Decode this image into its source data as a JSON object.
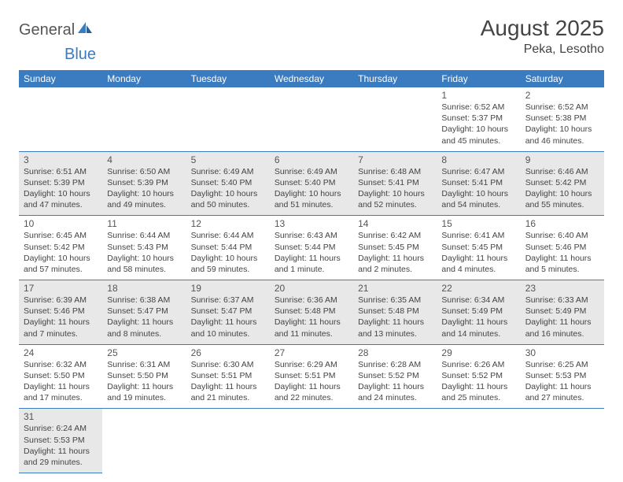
{
  "header": {
    "logo_text_1": "General",
    "logo_text_2": "Blue",
    "month_title": "August 2025",
    "location": "Peka, Lesotho"
  },
  "colors": {
    "header_bg": "#3b7bbf",
    "header_text": "#ffffff",
    "row_border": "#3b7bbf",
    "shaded_row": "#e8e8e8",
    "body_text": "#444444",
    "logo_gray": "#555555",
    "logo_blue": "#3b7bbf",
    "page_bg": "#ffffff"
  },
  "calendar": {
    "day_headers": [
      "Sunday",
      "Monday",
      "Tuesday",
      "Wednesday",
      "Thursday",
      "Friday",
      "Saturday"
    ],
    "weeks": [
      {
        "shaded": false,
        "cells": [
          null,
          null,
          null,
          null,
          null,
          {
            "num": "1",
            "sunrise": "Sunrise: 6:52 AM",
            "sunset": "Sunset: 5:37 PM",
            "day1": "Daylight: 10 hours",
            "day2": "and 45 minutes."
          },
          {
            "num": "2",
            "sunrise": "Sunrise: 6:52 AM",
            "sunset": "Sunset: 5:38 PM",
            "day1": "Daylight: 10 hours",
            "day2": "and 46 minutes."
          }
        ]
      },
      {
        "shaded": true,
        "cells": [
          {
            "num": "3",
            "sunrise": "Sunrise: 6:51 AM",
            "sunset": "Sunset: 5:39 PM",
            "day1": "Daylight: 10 hours",
            "day2": "and 47 minutes."
          },
          {
            "num": "4",
            "sunrise": "Sunrise: 6:50 AM",
            "sunset": "Sunset: 5:39 PM",
            "day1": "Daylight: 10 hours",
            "day2": "and 49 minutes."
          },
          {
            "num": "5",
            "sunrise": "Sunrise: 6:49 AM",
            "sunset": "Sunset: 5:40 PM",
            "day1": "Daylight: 10 hours",
            "day2": "and 50 minutes."
          },
          {
            "num": "6",
            "sunrise": "Sunrise: 6:49 AM",
            "sunset": "Sunset: 5:40 PM",
            "day1": "Daylight: 10 hours",
            "day2": "and 51 minutes."
          },
          {
            "num": "7",
            "sunrise": "Sunrise: 6:48 AM",
            "sunset": "Sunset: 5:41 PM",
            "day1": "Daylight: 10 hours",
            "day2": "and 52 minutes."
          },
          {
            "num": "8",
            "sunrise": "Sunrise: 6:47 AM",
            "sunset": "Sunset: 5:41 PM",
            "day1": "Daylight: 10 hours",
            "day2": "and 54 minutes."
          },
          {
            "num": "9",
            "sunrise": "Sunrise: 6:46 AM",
            "sunset": "Sunset: 5:42 PM",
            "day1": "Daylight: 10 hours",
            "day2": "and 55 minutes."
          }
        ]
      },
      {
        "shaded": false,
        "cells": [
          {
            "num": "10",
            "sunrise": "Sunrise: 6:45 AM",
            "sunset": "Sunset: 5:42 PM",
            "day1": "Daylight: 10 hours",
            "day2": "and 57 minutes."
          },
          {
            "num": "11",
            "sunrise": "Sunrise: 6:44 AM",
            "sunset": "Sunset: 5:43 PM",
            "day1": "Daylight: 10 hours",
            "day2": "and 58 minutes."
          },
          {
            "num": "12",
            "sunrise": "Sunrise: 6:44 AM",
            "sunset": "Sunset: 5:44 PM",
            "day1": "Daylight: 10 hours",
            "day2": "and 59 minutes."
          },
          {
            "num": "13",
            "sunrise": "Sunrise: 6:43 AM",
            "sunset": "Sunset: 5:44 PM",
            "day1": "Daylight: 11 hours",
            "day2": "and 1 minute."
          },
          {
            "num": "14",
            "sunrise": "Sunrise: 6:42 AM",
            "sunset": "Sunset: 5:45 PM",
            "day1": "Daylight: 11 hours",
            "day2": "and 2 minutes."
          },
          {
            "num": "15",
            "sunrise": "Sunrise: 6:41 AM",
            "sunset": "Sunset: 5:45 PM",
            "day1": "Daylight: 11 hours",
            "day2": "and 4 minutes."
          },
          {
            "num": "16",
            "sunrise": "Sunrise: 6:40 AM",
            "sunset": "Sunset: 5:46 PM",
            "day1": "Daylight: 11 hours",
            "day2": "and 5 minutes."
          }
        ]
      },
      {
        "shaded": true,
        "cells": [
          {
            "num": "17",
            "sunrise": "Sunrise: 6:39 AM",
            "sunset": "Sunset: 5:46 PM",
            "day1": "Daylight: 11 hours",
            "day2": "and 7 minutes."
          },
          {
            "num": "18",
            "sunrise": "Sunrise: 6:38 AM",
            "sunset": "Sunset: 5:47 PM",
            "day1": "Daylight: 11 hours",
            "day2": "and 8 minutes."
          },
          {
            "num": "19",
            "sunrise": "Sunrise: 6:37 AM",
            "sunset": "Sunset: 5:47 PM",
            "day1": "Daylight: 11 hours",
            "day2": "and 10 minutes."
          },
          {
            "num": "20",
            "sunrise": "Sunrise: 6:36 AM",
            "sunset": "Sunset: 5:48 PM",
            "day1": "Daylight: 11 hours",
            "day2": "and 11 minutes."
          },
          {
            "num": "21",
            "sunrise": "Sunrise: 6:35 AM",
            "sunset": "Sunset: 5:48 PM",
            "day1": "Daylight: 11 hours",
            "day2": "and 13 minutes."
          },
          {
            "num": "22",
            "sunrise": "Sunrise: 6:34 AM",
            "sunset": "Sunset: 5:49 PM",
            "day1": "Daylight: 11 hours",
            "day2": "and 14 minutes."
          },
          {
            "num": "23",
            "sunrise": "Sunrise: 6:33 AM",
            "sunset": "Sunset: 5:49 PM",
            "day1": "Daylight: 11 hours",
            "day2": "and 16 minutes."
          }
        ]
      },
      {
        "shaded": false,
        "cells": [
          {
            "num": "24",
            "sunrise": "Sunrise: 6:32 AM",
            "sunset": "Sunset: 5:50 PM",
            "day1": "Daylight: 11 hours",
            "day2": "and 17 minutes."
          },
          {
            "num": "25",
            "sunrise": "Sunrise: 6:31 AM",
            "sunset": "Sunset: 5:50 PM",
            "day1": "Daylight: 11 hours",
            "day2": "and 19 minutes."
          },
          {
            "num": "26",
            "sunrise": "Sunrise: 6:30 AM",
            "sunset": "Sunset: 5:51 PM",
            "day1": "Daylight: 11 hours",
            "day2": "and 21 minutes."
          },
          {
            "num": "27",
            "sunrise": "Sunrise: 6:29 AM",
            "sunset": "Sunset: 5:51 PM",
            "day1": "Daylight: 11 hours",
            "day2": "and 22 minutes."
          },
          {
            "num": "28",
            "sunrise": "Sunrise: 6:28 AM",
            "sunset": "Sunset: 5:52 PM",
            "day1": "Daylight: 11 hours",
            "day2": "and 24 minutes."
          },
          {
            "num": "29",
            "sunrise": "Sunrise: 6:26 AM",
            "sunset": "Sunset: 5:52 PM",
            "day1": "Daylight: 11 hours",
            "day2": "and 25 minutes."
          },
          {
            "num": "30",
            "sunrise": "Sunrise: 6:25 AM",
            "sunset": "Sunset: 5:53 PM",
            "day1": "Daylight: 11 hours",
            "day2": "and 27 minutes."
          }
        ]
      },
      {
        "shaded": true,
        "cells": [
          {
            "num": "31",
            "sunrise": "Sunrise: 6:24 AM",
            "sunset": "Sunset: 5:53 PM",
            "day1": "Daylight: 11 hours",
            "day2": "and 29 minutes."
          },
          null,
          null,
          null,
          null,
          null,
          null
        ]
      }
    ]
  }
}
